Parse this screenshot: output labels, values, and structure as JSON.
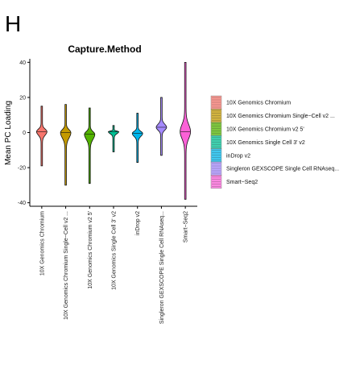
{
  "panel_label": "H",
  "chart_data": {
    "type": "violin",
    "title": "Capture.Method",
    "xlabel": "",
    "ylabel": "Mean PC Loading",
    "ylim": [
      -42,
      42
    ],
    "yticks": [
      -40,
      -20,
      0,
      20,
      40
    ],
    "grid": false,
    "legend_position": "right",
    "categories": [
      "10X Genomics Chromium",
      "10X Genomics Chromium Single−Cell v2 ...",
      "10X Genomics Chromium v2 5'",
      "10X Genomics Single Cell 3' v2",
      "inDrop v2",
      "Singleron GEXSCOPE Single Cell RNAseq...",
      "Smart−Seq2"
    ],
    "legend": [
      "10X Genomics Chromium",
      "10X Genomics Chromium Single−Cell v2 ...",
      "10X Genomics Chromium v2 5'",
      "10X Genomics Single Cell 3' v2",
      "inDrop v2",
      "Singleron GEXSCOPE Single Cell RNAseq...",
      "Smart−Seq2"
    ],
    "colors": [
      "#F8766D",
      "#C49A00",
      "#53B400",
      "#00C094",
      "#00B6EB",
      "#A58AFF",
      "#FB61D7"
    ],
    "series": [
      {
        "min": -19,
        "max": 15,
        "median": 0.5
      },
      {
        "min": -30,
        "max": 16,
        "median": 0
      },
      {
        "min": -29,
        "max": 14,
        "median": -1
      },
      {
        "min": -11,
        "max": 4,
        "median": 0.5
      },
      {
        "min": -17,
        "max": 11,
        "median": -0.5
      },
      {
        "min": -13,
        "max": 20,
        "median": 3
      },
      {
        "min": -38,
        "max": 40,
        "median": 0.5
      }
    ]
  }
}
